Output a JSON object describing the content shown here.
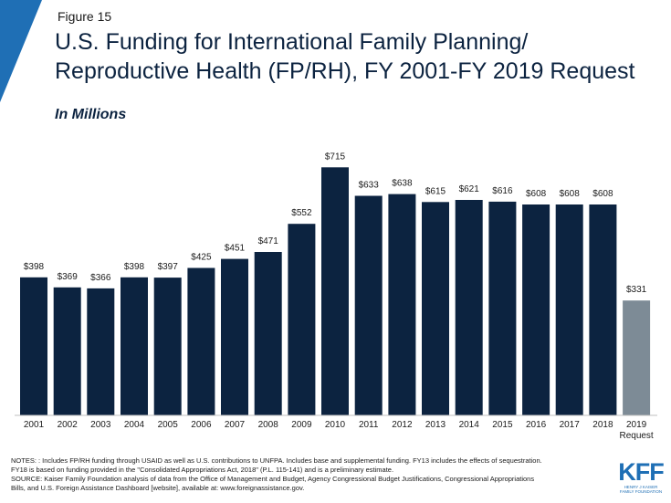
{
  "figure_label": "Figure 15",
  "title_line1": "U.S. Funding for International Family Planning/",
  "title_line2": "Reproductive Health (FP/RH), FY 2001-FY 2019 Request",
  "subtitle": "In Millions",
  "colors": {
    "bar": "#0c2340",
    "request_bar": "#7d8b96",
    "corner": "#1f6fb5",
    "label": "#1a1a1a"
  },
  "chart_data": {
    "type": "bar",
    "title": "U.S. Funding for International Family Planning/Reproductive Health (FP/RH), FY 2001-FY 2019 Request",
    "ylabel": "",
    "xlabel": "",
    "ylim": [
      0,
      750
    ],
    "grid": false,
    "categories": [
      "2001",
      "2002",
      "2003",
      "2004",
      "2005",
      "2006",
      "2007",
      "2008",
      "2009",
      "2010",
      "2011",
      "2012",
      "2013",
      "2014",
      "2015",
      "2016",
      "2017",
      "2018",
      "2019"
    ],
    "category_sublabels": [
      "",
      "",
      "",
      "",
      "",
      "",
      "",
      "",
      "",
      "",
      "",
      "",
      "",
      "",
      "",
      "",
      "",
      "",
      "Request"
    ],
    "values": [
      398,
      369,
      366,
      398,
      397,
      425,
      451,
      471,
      552,
      715,
      633,
      638,
      615,
      621,
      616,
      608,
      608,
      608,
      331
    ],
    "value_labels": [
      "$398",
      "$369",
      "$366",
      "$398",
      "$397",
      "$425",
      "$451",
      "$471",
      "$552",
      "$715",
      "$633",
      "$638",
      "$615",
      "$621",
      "$616",
      "$608",
      "$608",
      "$608",
      "$331"
    ],
    "highlight_index": 18
  },
  "notes": {
    "line1": "NOTES:  : Includes FP/RH  funding through USAID as well as U.S. contributions to UNFPA.  Includes base and supplemental funding. FY13 includes the effects of sequestration.",
    "line2": "FY18 is based on funding provided in the \"Consolidated Appropriations Act, 2018\" (P.L. 115-141) and is a preliminary estimate.",
    "line3": "SOURCE:  Kaiser Family Foundation analysis of data from the Office of Management and Budget, Agency Congressional Budget Justifications, Congressional Appropriations",
    "line4": "Bills, and U.S.  Foreign Assistance Dashboard [website], available at: www.foreignassistance.gov."
  },
  "logo": {
    "main": "KFF",
    "sub1": "HENRY J KAISER",
    "sub2": "FAMILY FOUNDATION"
  }
}
